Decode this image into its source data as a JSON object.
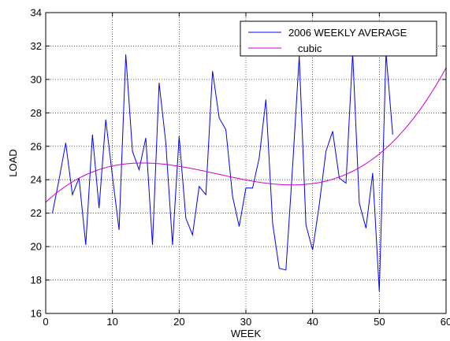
{
  "chart_data": {
    "type": "line",
    "title": "",
    "xlabel": "WEEK",
    "ylabel": "LOAD",
    "xlim": [
      0,
      60
    ],
    "ylim": [
      16,
      34
    ],
    "x_ticks": [
      "0",
      "10",
      "20",
      "30",
      "40",
      "50",
      "60"
    ],
    "y_ticks": [
      "16",
      "18",
      "20",
      "22",
      "24",
      "26",
      "28",
      "30",
      "32",
      "34"
    ],
    "grid": true,
    "legend_position": "top-right",
    "series": [
      {
        "name": "2006 WEEKLY AVERAGE",
        "color": "#0000ff",
        "x": [
          1,
          2,
          3,
          4,
          5,
          6,
          7,
          8,
          9,
          10,
          11,
          12,
          13,
          14,
          15,
          16,
          17,
          18,
          19,
          20,
          21,
          22,
          23,
          24,
          25,
          26,
          27,
          28,
          29,
          30,
          31,
          32,
          33,
          34,
          35,
          36,
          37,
          38,
          39,
          40,
          41,
          42,
          43,
          44,
          45,
          46,
          47,
          48,
          49,
          50,
          51,
          52
        ],
        "y": [
          22.0,
          24.0,
          26.2,
          23.1,
          24.1,
          20.1,
          26.7,
          22.3,
          27.6,
          24.2,
          21.0,
          31.5,
          25.7,
          24.6,
          26.5,
          20.1,
          29.8,
          26.2,
          20.1,
          26.6,
          21.7,
          20.7,
          23.6,
          23.1,
          30.5,
          27.7,
          27.0,
          23.0,
          21.2,
          23.5,
          23.5,
          25.3,
          28.8,
          21.4,
          18.7,
          18.6,
          24.8,
          31.4,
          21.3,
          19.8,
          22.5,
          25.7,
          26.9,
          24.1,
          23.8,
          31.6,
          22.6,
          21.1,
          24.4,
          17.3,
          31.6,
          26.7
        ]
      },
      {
        "name": "cubic",
        "color": "#cc00cc",
        "curve": {
          "type": "cubic",
          "x_range": [
            0,
            60
          ],
          "x_values": [
            0,
            15,
            38,
            60
          ],
          "y_values": [
            22.65,
            25.0,
            23.7,
            30.7
          ]
        }
      }
    ]
  }
}
